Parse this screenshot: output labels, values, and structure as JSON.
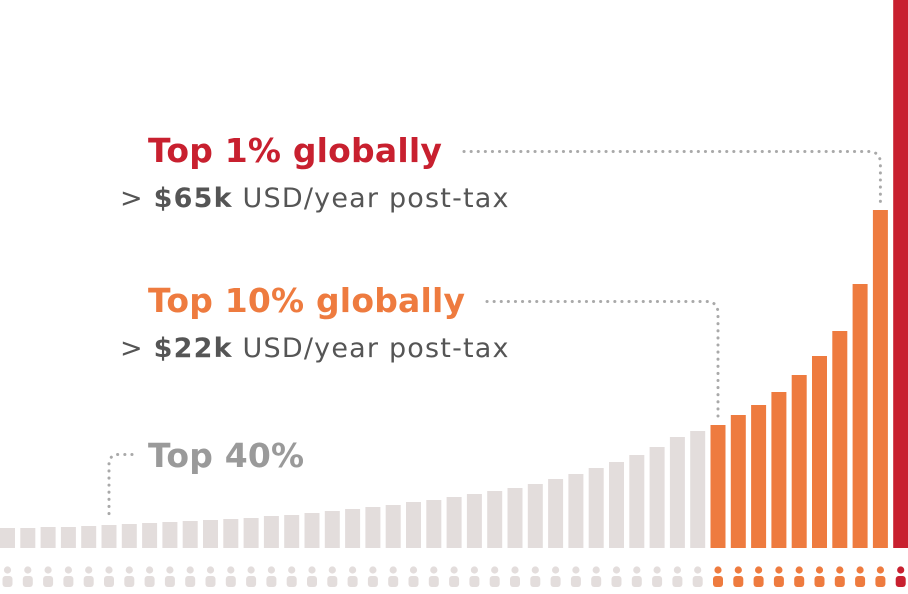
{
  "chart_data": {
    "type": "bar",
    "title": "",
    "xlabel": "",
    "ylabel": "",
    "bars": [
      {
        "value": 20,
        "tier": "base"
      },
      {
        "value": 20,
        "tier": "base"
      },
      {
        "value": 21,
        "tier": "base"
      },
      {
        "value": 21,
        "tier": "base"
      },
      {
        "value": 22,
        "tier": "base"
      },
      {
        "value": 23,
        "tier": "base"
      },
      {
        "value": 24,
        "tier": "base"
      },
      {
        "value": 25,
        "tier": "base"
      },
      {
        "value": 26,
        "tier": "base"
      },
      {
        "value": 27,
        "tier": "base"
      },
      {
        "value": 28,
        "tier": "base"
      },
      {
        "value": 29,
        "tier": "base"
      },
      {
        "value": 30,
        "tier": "base"
      },
      {
        "value": 32,
        "tier": "base"
      },
      {
        "value": 33,
        "tier": "base"
      },
      {
        "value": 35,
        "tier": "base"
      },
      {
        "value": 37,
        "tier": "base"
      },
      {
        "value": 39,
        "tier": "base"
      },
      {
        "value": 41,
        "tier": "base"
      },
      {
        "value": 43,
        "tier": "base"
      },
      {
        "value": 46,
        "tier": "base"
      },
      {
        "value": 48,
        "tier": "base"
      },
      {
        "value": 51,
        "tier": "base"
      },
      {
        "value": 54,
        "tier": "base"
      },
      {
        "value": 57,
        "tier": "base"
      },
      {
        "value": 60,
        "tier": "base"
      },
      {
        "value": 64,
        "tier": "base"
      },
      {
        "value": 69,
        "tier": "base"
      },
      {
        "value": 74,
        "tier": "base"
      },
      {
        "value": 80,
        "tier": "base"
      },
      {
        "value": 86,
        "tier": "base"
      },
      {
        "value": 93,
        "tier": "base"
      },
      {
        "value": 101,
        "tier": "base"
      },
      {
        "value": 111,
        "tier": "base"
      },
      {
        "value": 117,
        "tier": "base"
      },
      {
        "value": 123,
        "tier": "top10"
      },
      {
        "value": 133,
        "tier": "top10"
      },
      {
        "value": 143,
        "tier": "top10"
      },
      {
        "value": 156,
        "tier": "top10"
      },
      {
        "value": 173,
        "tier": "top10"
      },
      {
        "value": 192,
        "tier": "top10"
      },
      {
        "value": 217,
        "tier": "top10"
      },
      {
        "value": 264,
        "tier": "top10"
      },
      {
        "value": 338,
        "tier": "top10"
      },
      {
        "value": 561,
        "tier": "top1"
      }
    ],
    "ylim": [
      0,
      561
    ],
    "annotations": [
      {
        "id": "top1",
        "title": "Top 1% globally",
        "prefix": ">",
        "amount": "$65k",
        "suffix": "USD/year post-tax",
        "target_bar": 43
      },
      {
        "id": "top10",
        "title": "Top 10% globally",
        "prefix": ">",
        "amount": "$22k",
        "suffix": "USD/year post-tax",
        "target_bar": 35
      },
      {
        "id": "top40",
        "title": "Top 40%",
        "target_bar": 5
      }
    ],
    "people_icons": true
  },
  "colors": {
    "base": "#e3dddc",
    "top10": "#ee7b3f",
    "top1": "#c8202f",
    "top40_text": "#9a9a9a",
    "connector": "#a9a9a9",
    "body_text": "#555555"
  }
}
